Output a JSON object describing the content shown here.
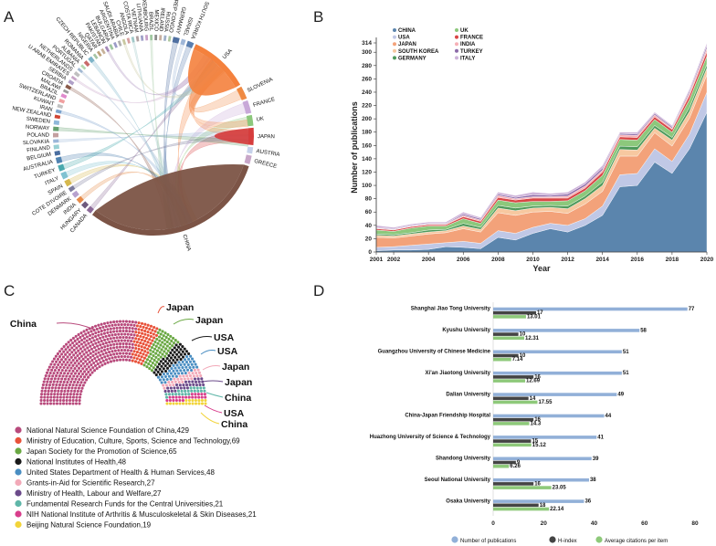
{
  "panels": [
    "A",
    "B",
    "C",
    "D"
  ],
  "chart_data": [
    {
      "type": "chord",
      "title": "",
      "countries": [
        "USA",
        "SLOVENIA",
        "FRANCE",
        "UK",
        "JAPAN",
        "AUSTRIA",
        "GREECE",
        "CHINA",
        "CANADA",
        "HUNGARY",
        "INDIA",
        "DENMARK",
        "COTE D'IVOIRE",
        "SPAIN",
        "ITALY",
        "TURKEY",
        "AUSTRALIA",
        "BELGIUM",
        "FINLAND",
        "SLOVAKIA",
        "POLAND",
        "NORWAY",
        "SWEDEN",
        "NEW ZEALAND",
        "IRAN",
        "KUWAIT",
        "SWITZERLAND",
        "BRAZIL",
        "MALAWI",
        "CROATIA",
        "SERBIA",
        "U ARAB EMIRATES",
        "NETHERLANDS",
        "PORTUGAL",
        "ALBANIA",
        "ROMANIA",
        "CZECH REPUBLIC",
        "NIGERIA",
        "QATAR",
        "PAKISTAN",
        "LEBANON",
        "BULGARIA",
        "ARGENTINA",
        "SAUDI ARABIA",
        "CHILE",
        "ANGOLA",
        "COSTA RICA",
        "VIETNAM",
        "LITHUANIA",
        "LUXEMBOURG",
        "BRAZIL2",
        "MEXICO",
        "IRELAND",
        "RUSSIA",
        "DEM REP CONGO",
        "GERMANY",
        "ISRAEL",
        "SOUTH KOREA"
      ],
      "display": [
        "USA",
        "SLOVENIA",
        "FRANCE",
        "UK",
        "JAPAN",
        "AUSTRIA",
        "GREECE",
        "CHINA",
        "CANADA",
        "HUNGARY",
        "INDIA",
        "DENMARK",
        "COTE D'IVOIRE",
        "SPAIN",
        "ITALY",
        "TURKEY",
        "AUSTRALIA",
        "BELGIUM",
        "FINLAND",
        "SLOVAKIA",
        "POLAND",
        "NORWAY",
        "SWEDEN",
        "NEW ZEALAND",
        "IRAN",
        "KUWAIT",
        "SWITZERLAND",
        "BRAZIL",
        "MALAWI",
        "CROATIA",
        "SERBIA",
        "U ARAB EMIRATES",
        "NETHERLANDS",
        "PORTUGAL",
        "ALBANIA",
        "ROMANIA",
        "CZECH REPUBLIC",
        "NIGERIA",
        "QATAR",
        "PAKISTAN",
        "LEBANON",
        "BULGARIA",
        "ARGENTINA",
        "SAUDI ARABIA",
        "CHILE",
        "ANGOLA",
        "COSTA RICA",
        "VIETNAM",
        "LITHUANIA",
        "LUXEMBOURG",
        "BRAZIL",
        "MEXICO",
        "IRELAND",
        "RUSSIA",
        "DEM REP CONGO",
        "GERMANY",
        "ISRAEL",
        "SOUTH KOREA"
      ],
      "weights": [
        14,
        3,
        3,
        2.5,
        4,
        1.5,
        2,
        44,
        1.2,
        1.2,
        1.2,
        1.2,
        1,
        1.4,
        1.5,
        1.4,
        1.4,
        1,
        1,
        0.8,
        1,
        1,
        1,
        0.8,
        0.8,
        0.8,
        0.8,
        0.8,
        0.6,
        0.8,
        0.8,
        0.6,
        0.8,
        0.6,
        0.6,
        0.8,
        1,
        0.6,
        0.6,
        0.6,
        0.6,
        0.6,
        0.6,
        0.6,
        0.6,
        0.6,
        0.6,
        0.6,
        0.6,
        0.6,
        0.6,
        0.6,
        0.6,
        0.6,
        0.6,
        1.5,
        1,
        1.5
      ],
      "colors": [
        "#f4813d",
        "#ef8a43",
        "#c8a8d8",
        "#8cc77b",
        "#d63d3d",
        "#c6d1ea",
        "#c8a6c8",
        "#7c5446",
        "#8c6a98",
        "#6e5a7e",
        "#e68b49",
        "#b7a1ce",
        "#7b7b9c",
        "#d6b84e",
        "#7fc2d1",
        "#49a9ad",
        "#5082b0",
        "#4a6ea0",
        "#98d0d4",
        "#9bb7d9",
        "#c4a0a0",
        "#65a070",
        "#90b8da",
        "#d04535",
        "#7ca3cd",
        "#c1c1c1",
        "#f0a0a0",
        "#e08acc",
        "#9c9c9c",
        "#8b5b4b",
        "#b0a0c8",
        "#c8a6c8",
        "#c0c0c0",
        "#a2b8d2",
        "#b5d8b0",
        "#c86a6a",
        "#7db4c8",
        "#a7c5a4",
        "#bda27a",
        "#c7b299",
        "#a58ab9",
        "#a0c8a0",
        "#9c9cc8",
        "#b0b0b0",
        "#c8c8a0",
        "#d7a0a0",
        "#a0c8c8",
        "#b0a0a0",
        "#a0a0c8",
        "#c8a0c8",
        "#a0c8a0",
        "#8c8c8c",
        "#c8b0a0",
        "#a0b0c8",
        "#b0c8a0",
        "#4f6fa0",
        "#9fb7d8",
        "#5a7fb0"
      ]
    },
    {
      "type": "area",
      "title": "",
      "xlabel": "Year",
      "ylabel": "Number of publications",
      "x": [
        2001,
        2002,
        2003,
        2004,
        2005,
        2006,
        2007,
        2008,
        2009,
        2010,
        2011,
        2012,
        2013,
        2014,
        2015,
        2016,
        2017,
        2018,
        2019,
        2020
      ],
      "xticks": [
        2001,
        2002,
        2004,
        2006,
        2008,
        2010,
        2012,
        2014,
        2016,
        2018,
        2020
      ],
      "ylim": [
        0,
        314
      ],
      "yticks": [
        0,
        20,
        40,
        60,
        80,
        100,
        120,
        140,
        160,
        180,
        200,
        220,
        240,
        260,
        280,
        300,
        314
      ],
      "total": [
        40,
        37,
        42,
        45,
        45,
        60,
        52,
        90,
        85,
        90,
        88,
        90,
        105,
        130,
        180,
        180,
        210,
        190,
        245,
        314
      ],
      "series": [
        {
          "name": "CHINA",
          "color": "#5b85ad",
          "values": [
            2,
            3,
            3,
            4,
            8,
            7,
            5,
            22,
            18,
            28,
            35,
            30,
            40,
            55,
            98,
            100,
            135,
            118,
            155,
            210
          ]
        },
        {
          "name": "USA",
          "color": "#c0c8e6",
          "values": [
            5,
            5,
            7,
            8,
            6,
            9,
            8,
            10,
            10,
            9,
            8,
            10,
            10,
            14,
            18,
            18,
            20,
            18,
            22,
            30
          ]
        },
        {
          "name": "JAPAN",
          "color": "#f3a27a",
          "values": [
            15,
            13,
            14,
            15,
            15,
            19,
            17,
            27,
            27,
            23,
            18,
            18,
            22,
            22,
            28,
            26,
            24,
            23,
            24,
            26
          ]
        },
        {
          "name": "SOUTH KOREA",
          "color": "#f7c8a0",
          "values": [
            3,
            3,
            3,
            3,
            3,
            4,
            4,
            7,
            7,
            6,
            6,
            7,
            8,
            9,
            10,
            9,
            7,
            9,
            10,
            10
          ]
        },
        {
          "name": "GERMANY",
          "color": "#4e9a5b",
          "values": [
            2,
            2,
            2,
            3,
            2,
            4,
            3,
            4,
            4,
            3,
            3,
            4,
            4,
            5,
            5,
            5,
            4,
            4,
            6,
            6
          ]
        },
        {
          "name": "UK",
          "color": "#8cc87c",
          "values": [
            6,
            5,
            7,
            6,
            5,
            7,
            6,
            8,
            8,
            7,
            6,
            8,
            8,
            10,
            10,
            10,
            9,
            8,
            12,
            12
          ]
        },
        {
          "name": "FRANCE",
          "color": "#d94545",
          "values": [
            2,
            2,
            2,
            2,
            2,
            3,
            3,
            4,
            4,
            5,
            5,
            4,
            4,
            5,
            4,
            4,
            4,
            4,
            6,
            7
          ]
        },
        {
          "name": "INDIA",
          "color": "#f6b0b6",
          "values": [
            1,
            1,
            1,
            1,
            1,
            2,
            2,
            3,
            2,
            2,
            2,
            3,
            3,
            3,
            3,
            3,
            3,
            2,
            4,
            5
          ]
        },
        {
          "name": "TURKEY",
          "color": "#8b6aa8",
          "values": [
            1,
            1,
            1,
            1,
            1,
            2,
            2,
            2,
            2,
            3,
            2,
            3,
            3,
            3,
            2,
            2,
            2,
            2,
            3,
            4
          ]
        },
        {
          "name": "ITALY",
          "color": "#cdb3d9",
          "values": [
            3,
            2,
            2,
            2,
            2,
            3,
            2,
            3,
            3,
            4,
            3,
            3,
            3,
            4,
            2,
            3,
            2,
            2,
            3,
            4
          ]
        }
      ]
    },
    {
      "type": "waffle-semicircle",
      "title": "",
      "annotations": [
        "China",
        "Japan",
        "Japan",
        "USA",
        "USA",
        "Japan",
        "Japan",
        "China",
        "USA",
        "China"
      ],
      "series": [
        {
          "name": "National Natural Science Foundation of China",
          "value": 429,
          "color": "#b84a7c"
        },
        {
          "name": "Ministry of Education, Culture, Sports, Science and Technology",
          "value": 69,
          "color": "#e8523a"
        },
        {
          "name": "Japan Society for the Promotion of Science",
          "value": 65,
          "color": "#6aa843"
        },
        {
          "name": "National Institutes of Health",
          "value": 48,
          "color": "#1a1a1a"
        },
        {
          "name": "United States Department of Health & Human Services",
          "value": 48,
          "color": "#4a8ec2"
        },
        {
          "name": "Grants-in-Aid for Scientific Research",
          "value": 27,
          "color": "#f2a9b8"
        },
        {
          "name": "Ministry of Health, Labour and Welfare",
          "value": 27,
          "color": "#6b4a8a"
        },
        {
          "name": "Fundamental Research Funds for the Central Universities",
          "value": 21,
          "color": "#5fb6a8"
        },
        {
          "name": "NIH National Institute of Arthritis & Musculoskeletal & Skin Diseases",
          "value": 21,
          "color": "#d83e8c"
        },
        {
          "name": "Beijing Natural Science Foundation",
          "value": 19,
          "color": "#f2d43a"
        }
      ]
    },
    {
      "type": "bar",
      "orientation": "horizontal",
      "title": "",
      "xlim": [
        0,
        80
      ],
      "xticks": [
        0,
        20,
        40,
        60,
        80
      ],
      "categories": [
        "Shanghai Jiao Tong University",
        "Kyushu University",
        "Guangzhou University of Chinese Medicine",
        "Xi'an Jiaotong University",
        "Dalian University",
        "China-Japan Friendship Hospital",
        "Huazhong University of Science & Technology",
        "Shandong University",
        "Seoul National University",
        "Osaka University"
      ],
      "series": [
        {
          "name": "Number of publications",
          "color": "#92b0d8",
          "values": [
            77,
            58,
            51,
            51,
            49,
            44,
            41,
            39,
            38,
            36
          ],
          "labels": [
            "77",
            "58",
            "51",
            "51",
            "49",
            "44",
            "41",
            "39",
            "38",
            "36"
          ]
        },
        {
          "name": "H-index",
          "color": "#444444",
          "values": [
            17,
            10,
            10,
            16,
            14,
            16,
            15,
            9,
            16,
            18
          ],
          "labels": [
            "17",
            "10",
            "10",
            "16",
            "14",
            "16",
            "15",
            "9",
            "16",
            "18"
          ]
        },
        {
          "name": "Average citations per item",
          "color": "#8ec97a",
          "values": [
            13.01,
            12.31,
            7.14,
            12.69,
            17.55,
            14.3,
            15.12,
            6.26,
            23.05,
            22.14
          ],
          "labels": [
            "13.01",
            "12.31",
            "7.14",
            "12.69",
            "17.55",
            "14.3",
            "15.12",
            "6.26",
            "23.05",
            "22.14"
          ]
        }
      ]
    }
  ]
}
